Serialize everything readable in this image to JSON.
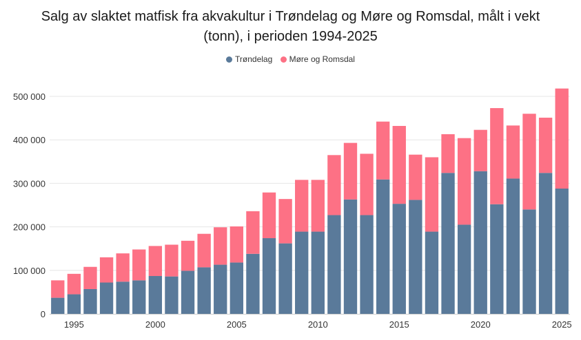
{
  "chart_data": {
    "type": "bar",
    "stacked": true,
    "title": "Salg av slaktet matfisk fra akvakultur i Trøndelag og Møre og Romsdal, målt i vekt (tonn), i perioden 1994-2025",
    "title_lines": [
      "Salg av slaktet matfisk fra akvakultur i Trøndelag og Møre og Romsdal, målt i vekt",
      "(tonn), i perioden 1994-2025"
    ],
    "legend_position": "top-center",
    "grid": true,
    "ylim": [
      0,
      520000
    ],
    "y_ticks": [
      0,
      100000,
      200000,
      300000,
      400000,
      500000
    ],
    "y_tick_labels": [
      "0",
      "100 000",
      "200 000",
      "300 000",
      "400 000",
      "500 000"
    ],
    "x_tick_labels": [
      "1995",
      "2000",
      "2005",
      "2010",
      "2015",
      "2020",
      "2025"
    ],
    "categories": [
      1994,
      1995,
      1996,
      1997,
      1998,
      1999,
      2000,
      2001,
      2002,
      2003,
      2004,
      2005,
      2006,
      2007,
      2008,
      2009,
      2010,
      2011,
      2012,
      2013,
      2014,
      2015,
      2016,
      2017,
      2018,
      2019,
      2020,
      2021,
      2022,
      2023,
      2024,
      2025
    ],
    "series": [
      {
        "name": "Trøndelag",
        "color": "#5a7a9a",
        "values": [
          37000,
          45000,
          57000,
          72000,
          74000,
          77000,
          87000,
          86000,
          99000,
          107000,
          113000,
          118000,
          138000,
          174000,
          162000,
          189000,
          189000,
          227000,
          263000,
          227000,
          309000,
          253000,
          262000,
          189000,
          324000,
          205000,
          328000,
          252000,
          311000,
          240000,
          324000,
          288000
        ]
      },
      {
        "name": "Møre og Romsdal",
        "color": "#fd7185",
        "values": [
          40000,
          47000,
          51000,
          58000,
          65000,
          71000,
          69000,
          73000,
          69000,
          77000,
          86000,
          83000,
          98000,
          105000,
          102000,
          119000,
          119000,
          138000,
          130000,
          141000,
          133000,
          179000,
          104000,
          171000,
          89000,
          199000,
          95000,
          221000,
          122000,
          220000,
          127000,
          230000
        ]
      }
    ]
  }
}
